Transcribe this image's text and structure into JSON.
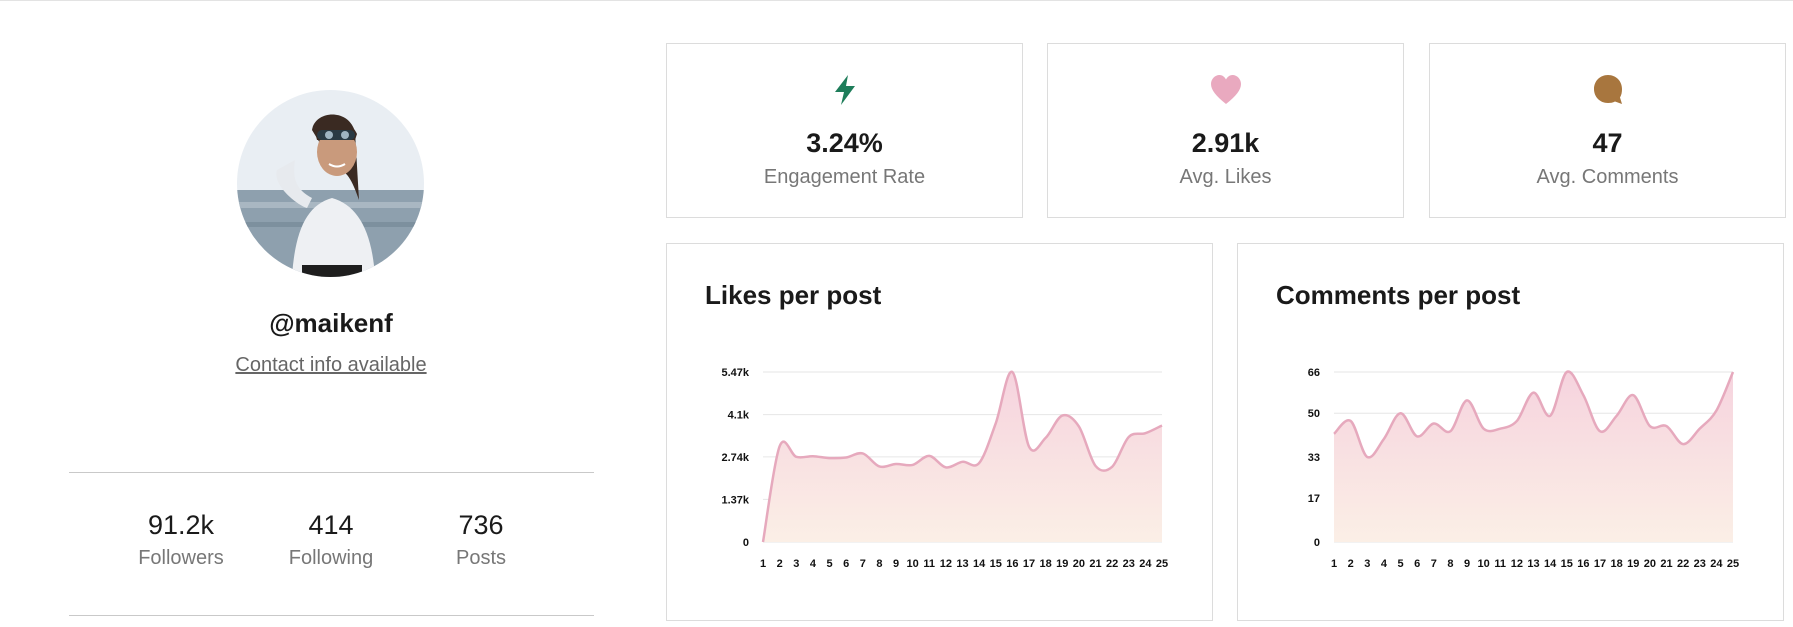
{
  "profile": {
    "username": "@maikenf",
    "contact_link": "Contact info available",
    "avatar_icon": "profile-photo-woman-snorkel-mask",
    "stats": [
      {
        "value": "91.2k",
        "label": "Followers"
      },
      {
        "value": "414",
        "label": "Following"
      },
      {
        "value": "736",
        "label": "Posts"
      }
    ]
  },
  "metrics": [
    {
      "icon": "lightning-icon",
      "color": "#1e7d5a",
      "value": "3.24%",
      "label": "Engagement Rate"
    },
    {
      "icon": "heart-icon",
      "color": "#e9a9bf",
      "value": "2.91k",
      "label": "Avg. Likes"
    },
    {
      "icon": "comment-bubble-icon",
      "color": "#a8763e",
      "value": "47",
      "label": "Avg. Comments"
    }
  ],
  "chart_data": [
    {
      "type": "area",
      "title": "Likes per post",
      "x": [
        1,
        2,
        3,
        4,
        5,
        6,
        7,
        8,
        9,
        10,
        11,
        12,
        13,
        14,
        15,
        16,
        17,
        18,
        19,
        20,
        21,
        22,
        23,
        24,
        25
      ],
      "series": [
        {
          "values": [
            0,
            3080,
            2740,
            2760,
            2700,
            2720,
            2850,
            2430,
            2510,
            2480,
            2770,
            2400,
            2580,
            2540,
            3820,
            5470,
            3070,
            3350,
            4070,
            3720,
            2450,
            2420,
            3380,
            3500,
            3750
          ]
        }
      ],
      "yticks": [
        "0",
        "1.37k",
        "2.74k",
        "4.1k",
        "5.47k"
      ],
      "ytick_values": [
        0,
        1370,
        2740,
        4100,
        5470
      ],
      "ylim": [
        0,
        5470
      ],
      "line_color": "#e6a9bd",
      "grid": true
    },
    {
      "type": "area",
      "title": "Comments per post",
      "x": [
        1,
        2,
        3,
        4,
        5,
        6,
        7,
        8,
        9,
        10,
        11,
        12,
        13,
        14,
        15,
        16,
        17,
        18,
        19,
        20,
        21,
        22,
        23,
        24,
        25
      ],
      "series": [
        {
          "values": [
            42,
            47,
            33,
            40,
            50,
            41,
            46,
            43,
            55,
            44,
            44,
            47,
            58,
            49,
            66,
            57,
            43,
            49,
            57,
            45,
            45,
            38,
            44,
            51,
            66
          ]
        }
      ],
      "yticks": [
        "0",
        "17",
        "33",
        "50",
        "66"
      ],
      "ytick_values": [
        0,
        17,
        33,
        50,
        66
      ],
      "ylim": [
        0,
        66
      ],
      "line_color": "#e6a9bd",
      "grid": true
    }
  ]
}
